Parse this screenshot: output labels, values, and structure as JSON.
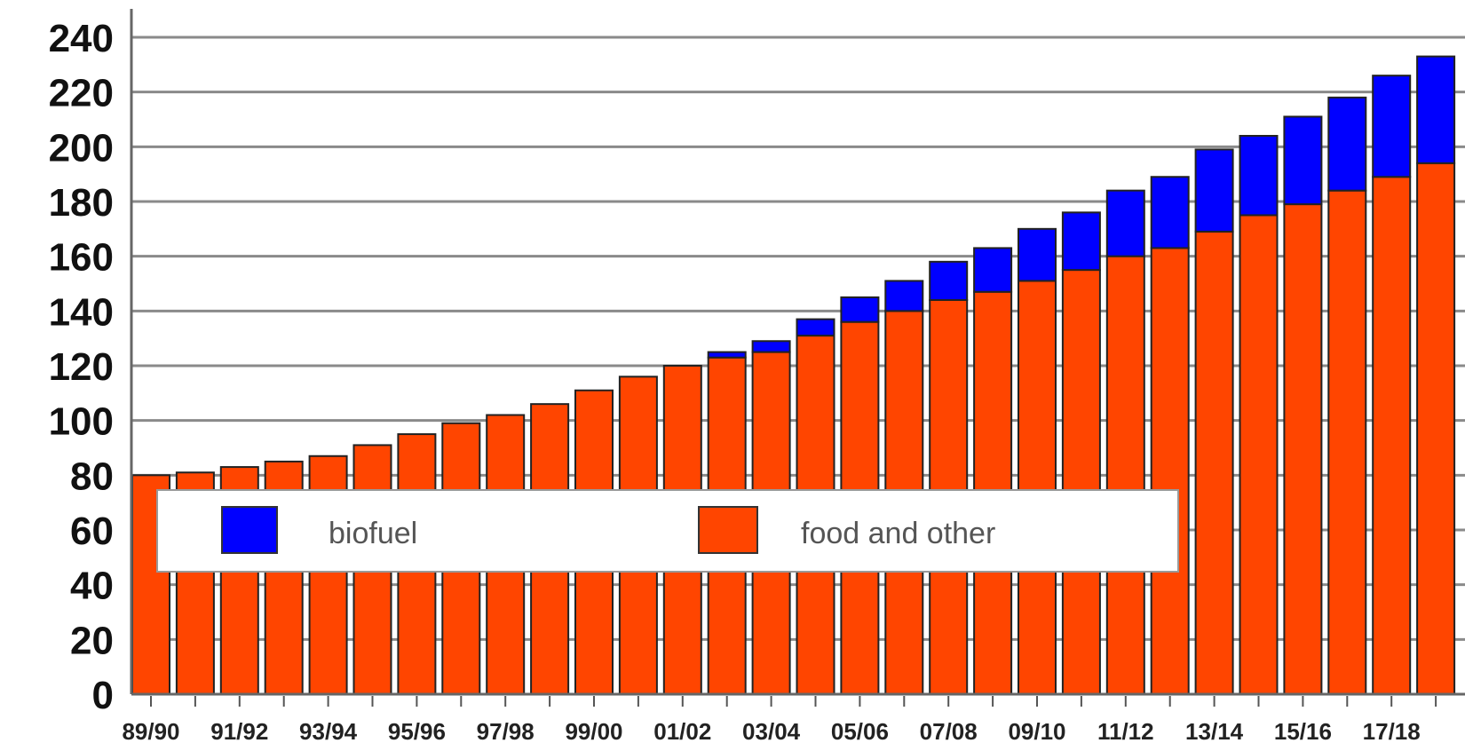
{
  "chart_data": {
    "type": "bar",
    "stacked": true,
    "title": "",
    "xlabel": "",
    "ylabel": "",
    "ylim": [
      0,
      240
    ],
    "y_ticks": [
      0,
      20,
      40,
      60,
      80,
      100,
      120,
      140,
      160,
      180,
      200,
      220,
      240
    ],
    "grid": "horizontal",
    "legend_position": "center-left, inside plot",
    "categories": [
      "89/90",
      "90/91",
      "91/92",
      "92/93",
      "93/94",
      "94/95",
      "95/96",
      "96/97",
      "97/98",
      "98/99",
      "99/00",
      "00/01",
      "01/02",
      "02/03",
      "03/04",
      "04/05",
      "05/06",
      "06/07",
      "07/08",
      "08/09",
      "09/10",
      "10/11",
      "11/12",
      "12/13",
      "13/14",
      "14/15",
      "15/16",
      "16/17",
      "17/18",
      "18/19"
    ],
    "x_tick_labels": [
      "89/90",
      "91/92",
      "93/94",
      "95/96",
      "97/98",
      "99/00",
      "01/02",
      "03/04",
      "05/06",
      "07/08",
      "09/10",
      "11/12",
      "13/14",
      "15/16",
      "17/18"
    ],
    "series": [
      {
        "name": "food and other",
        "color": "#ff4500",
        "values": [
          80,
          81,
          83,
          85,
          87,
          91,
          95,
          99,
          102,
          106,
          111,
          116,
          120,
          123,
          125,
          131,
          136,
          140,
          144,
          147,
          151,
          155,
          160,
          163,
          169,
          175,
          179,
          184,
          189,
          194
        ]
      },
      {
        "name": "biofuel",
        "color": "#0000ff",
        "values": [
          0,
          0,
          0,
          0,
          0,
          0,
          0,
          0,
          0,
          0,
          0,
          0,
          0,
          2,
          4,
          6,
          9,
          11,
          14,
          16,
          19,
          21,
          24,
          26,
          30,
          29,
          32,
          34,
          37,
          39
        ]
      }
    ],
    "legend": [
      {
        "label": "biofuel",
        "color": "#0000ff"
      },
      {
        "label": "food and other",
        "color": "#ff4500"
      }
    ]
  }
}
